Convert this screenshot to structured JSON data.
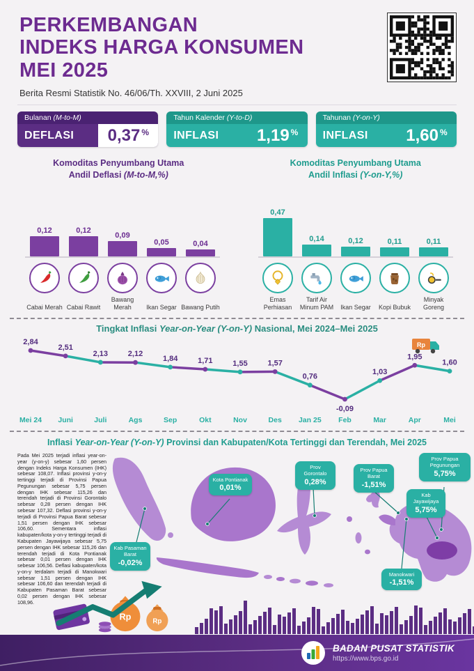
{
  "colors": {
    "purple": "#5b2d83",
    "purple_bright": "#7b3fa0",
    "teal": "#2ab0a4",
    "teal_dark": "#157d72",
    "orange": "#ef8e3a"
  },
  "header": {
    "title_line1": "PERKEMBANGAN",
    "title_line2": "INDEKS HARGA KONSUMEN",
    "title_line3": "MEI 2025",
    "subtitle": "Berita Resmi Statistik No. 46/06/Th. XXVIII, 2 Juni 2025"
  },
  "stat_cards": [
    {
      "period_label": "Bulanan",
      "period_code": "(M-to-M)",
      "type": "DEFLASI",
      "value": "0,37",
      "unit": "%"
    },
    {
      "period_label": "Tahun Kalender",
      "period_code": "(Y-to-D)",
      "type": "INFLASI",
      "value": "1,19",
      "unit": "%"
    },
    {
      "period_label": "Tahunan",
      "period_code": "(Y-on-Y)",
      "type": "INFLASI",
      "value": "1,60",
      "unit": "%"
    }
  ],
  "sections": {
    "deflasi": {
      "title1": "Komoditas Penyumbang Utama",
      "title2a": "Andil Deflasi ",
      "title2b": "(M-to-M,%)"
    },
    "inflasi": {
      "title1": "Komoditas Penyumbang Utama",
      "title2a": "Andil Inflasi ",
      "title2b": "(Y-on-Y,%)"
    },
    "trend": {
      "t1": "Tingkat Inflasi ",
      "t2": "Year-on-Year (Y-on-Y)",
      "t3": " Nasional, Mei 2024–Mei 2025"
    },
    "map": {
      "t1": "Inflasi ",
      "t2": "Year-on-Year (Y-on-Y)",
      "t3": " Provinsi dan Kabupaten/Kota Tertinggi dan Terendah, Mei 2025",
      "body": "Pada Mei 2025 terjadi inflasi year-on-year (y-on-y) sebesar 1,60 persen dengan Indeks Harga Konsumen (IHK) sebesar 108,07. Inflasi provinsi y-on-y tertinggi terjadi di Provinsi Papua Pegunungan sebesar 5,75 persen dengan IHK sebesar 115,26 dan terendah terjadi di Provinsi Gorontalo sebesar 0,28 persen dengan IHK sebesar 107,32. Deflasi provinsi y-on-y terjadi di Provinsi Papua Barat sebesar 1,51 persen dengan IHK sebesar 106,60. Sementara inflasi kabupaten/kota y-on-y tertinggi terjadi di Kabupaten Jayawijaya sebesar 5,75 persen dengan IHK sebesar 115,26 dan terendah terjadi di Kota Pontianak sebesar 0,01 persen dengan IHK sebesar 106,56. Deflasi kabupaten/kota y-on-y terdalam terjadi di Manokwari sebesar 1,51 persen dengan IHK sebesar 106,60 dan terendah terjadi di Kabupaten Pasaman Barat sebesar 0,02 persen dengan IHK sebesar 108,96."
    }
  },
  "chart_data": [
    {
      "type": "bar",
      "name": "andil_deflasi_m_to_m",
      "title": "Komoditas Penyumbang Utama Andil Deflasi (M-to-M,%)",
      "categories": [
        "Cabai Merah",
        "Cabai Rawit",
        "Bawang Merah",
        "Ikan Segar",
        "Bawang Putih"
      ],
      "values": [
        0.12,
        0.12,
        0.09,
        0.05,
        0.04
      ],
      "labels": [
        "0,12",
        "0,12",
        "0,09",
        "0,05",
        "0,04"
      ],
      "icons": [
        "chili-red",
        "chili-green",
        "onion-red",
        "fish",
        "garlic"
      ],
      "ylim": [
        0,
        0.15
      ]
    },
    {
      "type": "bar",
      "name": "andil_inflasi_y_on_y",
      "title": "Komoditas Penyumbang Utama Andil Inflasi (Y-on-Y,%)",
      "categories": [
        "Emas Perhiasan",
        "Tarif Air Minum PAM",
        "Ikan Segar",
        "Kopi Bubuk",
        "Minyak Goreng"
      ],
      "values": [
        0.47,
        0.14,
        0.12,
        0.11,
        0.11
      ],
      "labels": [
        "0,47",
        "0,14",
        "0,12",
        "0,11",
        "0,11"
      ],
      "icons": [
        "gold",
        "tap",
        "fish",
        "coffee",
        "oil"
      ],
      "ylim": [
        0,
        0.5
      ]
    },
    {
      "type": "line",
      "name": "inflasi_yoy_nasional",
      "title": "Tingkat Inflasi Year-on-Year (Y-on-Y) Nasional, Mei 2024–Mei 2025",
      "categories": [
        "Mei 24",
        "Juni",
        "Juli",
        "Ags",
        "Sep",
        "Okt",
        "Nov",
        "Des",
        "Jan 25",
        "Feb",
        "Mar",
        "Apr",
        "Mei"
      ],
      "values": [
        2.84,
        2.51,
        2.13,
        2.12,
        1.84,
        1.71,
        1.55,
        1.57,
        0.76,
        -0.09,
        1.03,
        1.95,
        1.6
      ],
      "labels": [
        "2,84",
        "2,51",
        "2,13",
        "2,12",
        "1,84",
        "1,71",
        "1,55",
        "1,57",
        "0,76",
        "-0,09",
        "1,03",
        "1,95",
        "1,60"
      ],
      "ylim": [
        -0.5,
        3.0
      ],
      "legend": "none",
      "grid": false
    }
  ],
  "map_callouts": [
    {
      "name": "Kota Pontianak",
      "value": "0,01%"
    },
    {
      "name": "Prov Gorontalo",
      "value": "0,28%"
    },
    {
      "name": "Prov Papua Barat",
      "value": "-1,51%"
    },
    {
      "name": "Prov Papua Pegunungan",
      "value": "5,75%"
    },
    {
      "name": "Kab Jayawijaya",
      "value": "5,75%"
    },
    {
      "name": "Kab Pasaman Barat",
      "value": "-0,02%"
    },
    {
      "name": "Manokwari",
      "value": "-1,51%"
    }
  ],
  "footer": {
    "org": "BADAN PUSAT STATISTIK",
    "url": "https://www.bps.go.id"
  }
}
